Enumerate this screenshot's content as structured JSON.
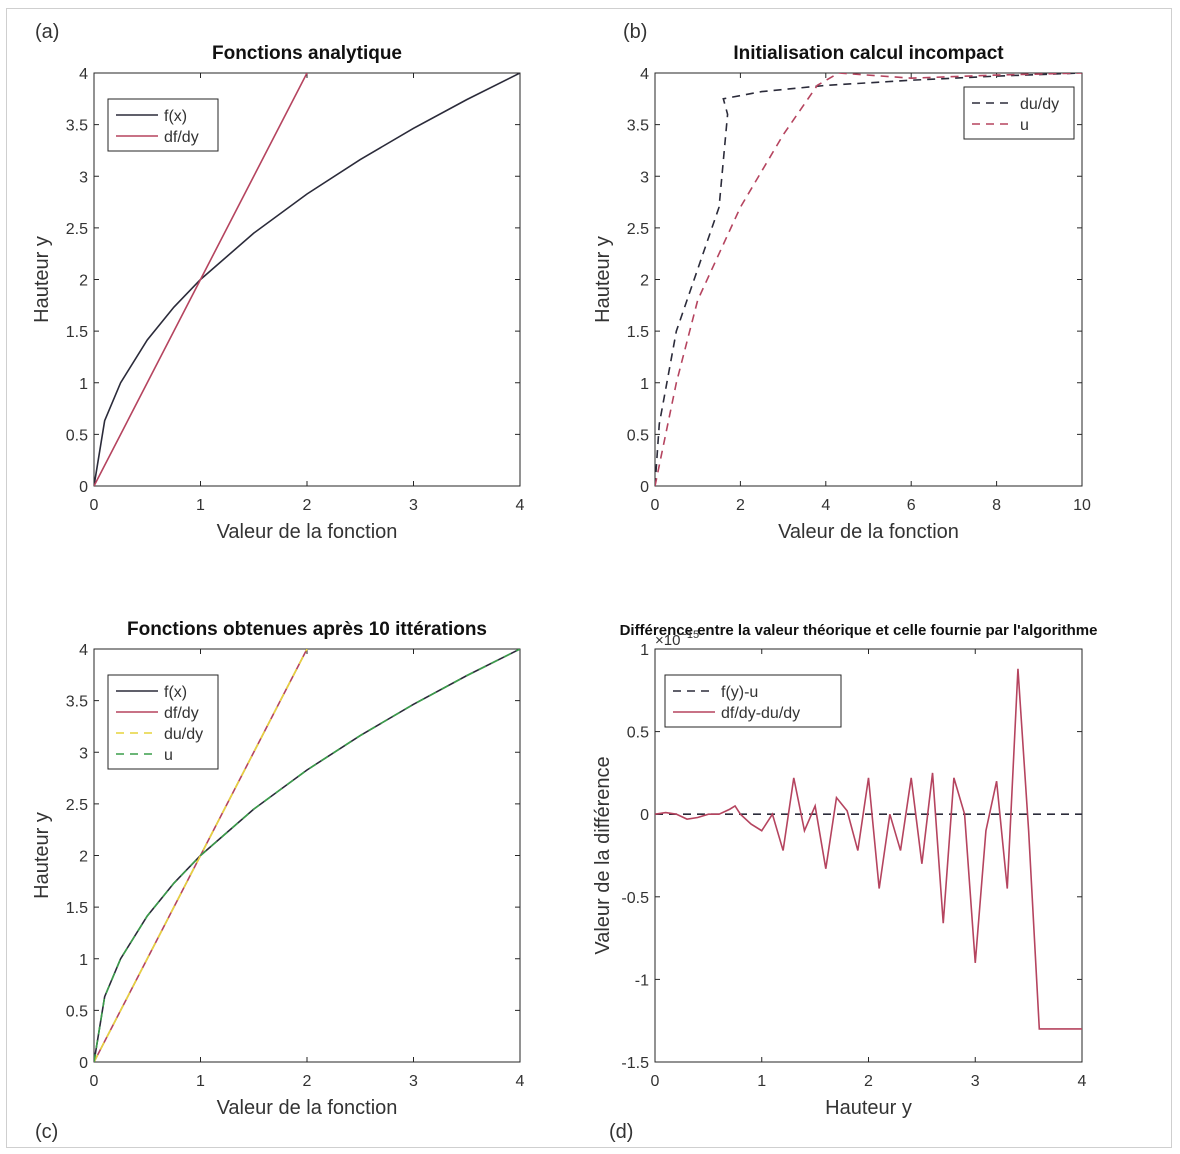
{
  "figure": {
    "panel_letters": [
      "(a)",
      "(b)",
      "(c)",
      "(d)"
    ]
  },
  "chart_data": [
    {
      "panel": "(a)",
      "type": "line",
      "title": "Fonctions analytique",
      "xlabel": "Valeur de la fonction",
      "ylabel": "Hauteur y",
      "xlim": [
        0,
        4
      ],
      "ylim": [
        0,
        4
      ],
      "xticks": [
        0,
        1,
        2,
        3,
        4
      ],
      "yticks": [
        0,
        0.5,
        1,
        1.5,
        2,
        2.5,
        3,
        3.5,
        4
      ],
      "xticklabels": [
        "0",
        "1",
        "2",
        "3",
        "4"
      ],
      "yticklabels": [
        "0",
        "0.5",
        "1",
        "1.5",
        "2",
        "2.5",
        "3",
        "3.5",
        "4"
      ],
      "legend_position": "top-left",
      "series": [
        {
          "name": "f(x)",
          "color": "#2b2b3a",
          "style": "solid",
          "x": [
            0,
            0.1,
            0.25,
            0.5,
            0.75,
            1,
            1.5,
            2,
            2.5,
            3,
            3.5,
            4
          ],
          "y": [
            0,
            0.632,
            1,
            1.414,
            1.732,
            2,
            2.449,
            2.828,
            3.162,
            3.464,
            3.742,
            4
          ]
        },
        {
          "name": "df/dy",
          "color": "#b5445f",
          "style": "solid",
          "x": [
            0,
            0.5,
            1,
            1.5,
            2
          ],
          "y": [
            0,
            1,
            2,
            3,
            4
          ]
        }
      ]
    },
    {
      "panel": "(b)",
      "type": "line",
      "title": "Initialisation calcul incompact",
      "xlabel": "Valeur de la fonction",
      "ylabel": "Hauteur y",
      "xlim": [
        0,
        10
      ],
      "ylim": [
        0,
        4
      ],
      "xticks": [
        0,
        2,
        4,
        6,
        8,
        10
      ],
      "yticks": [
        0,
        0.5,
        1,
        1.5,
        2,
        2.5,
        3,
        3.5,
        4
      ],
      "xticklabels": [
        "0",
        "2",
        "4",
        "6",
        "8",
        "10"
      ],
      "yticklabels": [
        "0",
        "0.5",
        "1",
        "1.5",
        "2",
        "2.5",
        "3",
        "3.5",
        "4"
      ],
      "legend_position": "top-right",
      "series": [
        {
          "name": "du/dy",
          "color": "#2b2b3a",
          "style": "dashed",
          "x": [
            0,
            0.1,
            0.5,
            1,
            1.5,
            1.7,
            1.6,
            2.5,
            4,
            6,
            8,
            10
          ],
          "y": [
            0,
            0.6,
            1.5,
            2.1,
            2.7,
            3.6,
            3.75,
            3.82,
            3.88,
            3.93,
            3.97,
            4
          ]
        },
        {
          "name": "u",
          "color": "#b5445f",
          "style": "dashed",
          "x": [
            0,
            0.1,
            0.5,
            1,
            2,
            3,
            3.8,
            4.3,
            6,
            8,
            10
          ],
          "y": [
            0,
            0.2,
            1,
            1.8,
            2.7,
            3.4,
            3.88,
            4,
            3.95,
            3.98,
            4
          ]
        }
      ]
    },
    {
      "panel": "(c)",
      "type": "line",
      "title": "Fonctions obtenues après 10 ittérations",
      "xlabel": "Valeur de la fonction",
      "ylabel": "Hauteur y",
      "xlim": [
        0,
        4
      ],
      "ylim": [
        0,
        4
      ],
      "xticks": [
        0,
        1,
        2,
        3,
        4
      ],
      "yticks": [
        0,
        0.5,
        1,
        1.5,
        2,
        2.5,
        3,
        3.5,
        4
      ],
      "xticklabels": [
        "0",
        "1",
        "2",
        "3",
        "4"
      ],
      "yticklabels": [
        "0",
        "0.5",
        "1",
        "1.5",
        "2",
        "2.5",
        "3",
        "3.5",
        "4"
      ],
      "legend_position": "top-left",
      "series": [
        {
          "name": "f(x)",
          "color": "#2b2b3a",
          "style": "solid",
          "x": [
            0,
            0.1,
            0.25,
            0.5,
            0.75,
            1,
            1.5,
            2,
            2.5,
            3,
            3.5,
            4
          ],
          "y": [
            0,
            0.632,
            1,
            1.414,
            1.732,
            2,
            2.449,
            2.828,
            3.162,
            3.464,
            3.742,
            4
          ]
        },
        {
          "name": "df/dy",
          "color": "#b5445f",
          "style": "solid",
          "x": [
            0,
            0.5,
            1,
            1.5,
            2
          ],
          "y": [
            0,
            1,
            2,
            3,
            4
          ]
        },
        {
          "name": "du/dy",
          "color": "#e6d43c",
          "style": "dashed",
          "x": [
            0,
            0.5,
            1,
            1.5,
            2
          ],
          "y": [
            0,
            1,
            2,
            3,
            4
          ]
        },
        {
          "name": "u",
          "color": "#3a9d4a",
          "style": "dashed",
          "x": [
            0,
            0.1,
            0.25,
            0.5,
            0.75,
            1,
            1.5,
            2,
            2.5,
            3,
            3.5,
            4
          ],
          "y": [
            0,
            0.632,
            1,
            1.414,
            1.732,
            2,
            2.449,
            2.828,
            3.162,
            3.464,
            3.742,
            4
          ]
        }
      ]
    },
    {
      "panel": "(d)",
      "type": "line",
      "title": "Différence entre la valeur théorique et celle fournie par l'algorithme",
      "xlabel": "Hauteur y",
      "ylabel": "Valeur de la différence",
      "y_multiplier": "×10",
      "y_multiplier_exponent": "−15",
      "xlim": [
        0,
        4
      ],
      "ylim": [
        -1.5,
        1
      ],
      "xticks": [
        0,
        1,
        2,
        3,
        4
      ],
      "yticks": [
        -1.5,
        -1,
        -0.5,
        0,
        0.5,
        1
      ],
      "xticklabels": [
        "0",
        "1",
        "2",
        "3",
        "4"
      ],
      "yticklabels": [
        "-1.5",
        "-1",
        "-0.5",
        "0",
        "0.5",
        "1"
      ],
      "legend_position": "top-left",
      "series": [
        {
          "name": "f(y)-u",
          "color": "#2b2b3a",
          "style": "dashed",
          "x": [
            0,
            4
          ],
          "y": [
            0,
            0
          ]
        },
        {
          "name": "df/dy-du/dy",
          "color": "#b5445f",
          "style": "solid",
          "x": [
            0,
            0.1,
            0.2,
            0.3,
            0.4,
            0.5,
            0.6,
            0.7,
            0.75,
            0.8,
            0.9,
            1.0,
            1.1,
            1.2,
            1.3,
            1.4,
            1.5,
            1.6,
            1.7,
            1.8,
            1.9,
            2.0,
            2.1,
            2.2,
            2.3,
            2.4,
            2.5,
            2.6,
            2.7,
            2.8,
            2.9,
            3.0,
            3.1,
            3.2,
            3.3,
            3.4,
            3.5,
            3.6,
            3.7,
            3.8,
            3.9,
            4.0
          ],
          "y": [
            0,
            0.01,
            0.0,
            -0.03,
            -0.02,
            0.0,
            0.0,
            0.03,
            0.05,
            0.0,
            -0.06,
            -0.1,
            0.0,
            -0.22,
            0.22,
            -0.1,
            0.05,
            -0.33,
            0.1,
            0.02,
            -0.22,
            0.22,
            -0.45,
            0.0,
            -0.22,
            0.22,
            -0.3,
            0.25,
            -0.66,
            0.22,
            0.0,
            -0.9,
            -0.1,
            0.2,
            -0.45,
            0.88,
            -0.1,
            -1.3,
            -1.3,
            -1.3,
            -1.3,
            -1.3
          ]
        }
      ]
    }
  ]
}
